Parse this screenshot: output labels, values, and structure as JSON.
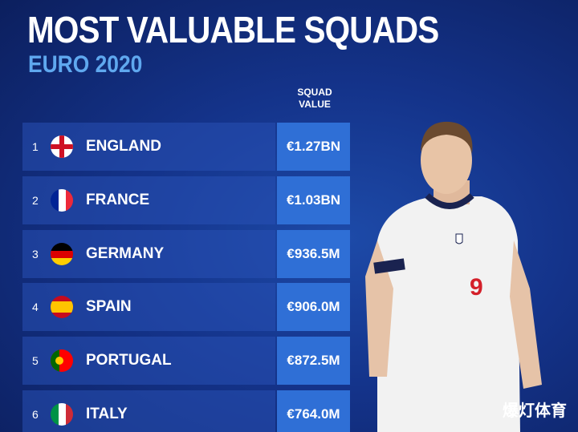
{
  "header": {
    "title": "MOST VALUABLE SQUADS",
    "subtitle": "EURO 2020"
  },
  "table": {
    "column_header": "SQUAD VALUE",
    "rows": [
      {
        "rank": 1,
        "country": "ENGLAND",
        "value": "€1.27BN"
      },
      {
        "rank": 2,
        "country": "FRANCE",
        "value": "€1.03BN"
      },
      {
        "rank": 3,
        "country": "GERMANY",
        "value": "€936.5M"
      },
      {
        "rank": 4,
        "country": "SPAIN",
        "value": "€906.0M"
      },
      {
        "rank": 5,
        "country": "PORTUGAL",
        "value": "€872.5M"
      },
      {
        "rank": 6,
        "country": "ITALY",
        "value": "€764.0M"
      }
    ]
  },
  "watermark": "爆灯体育"
}
